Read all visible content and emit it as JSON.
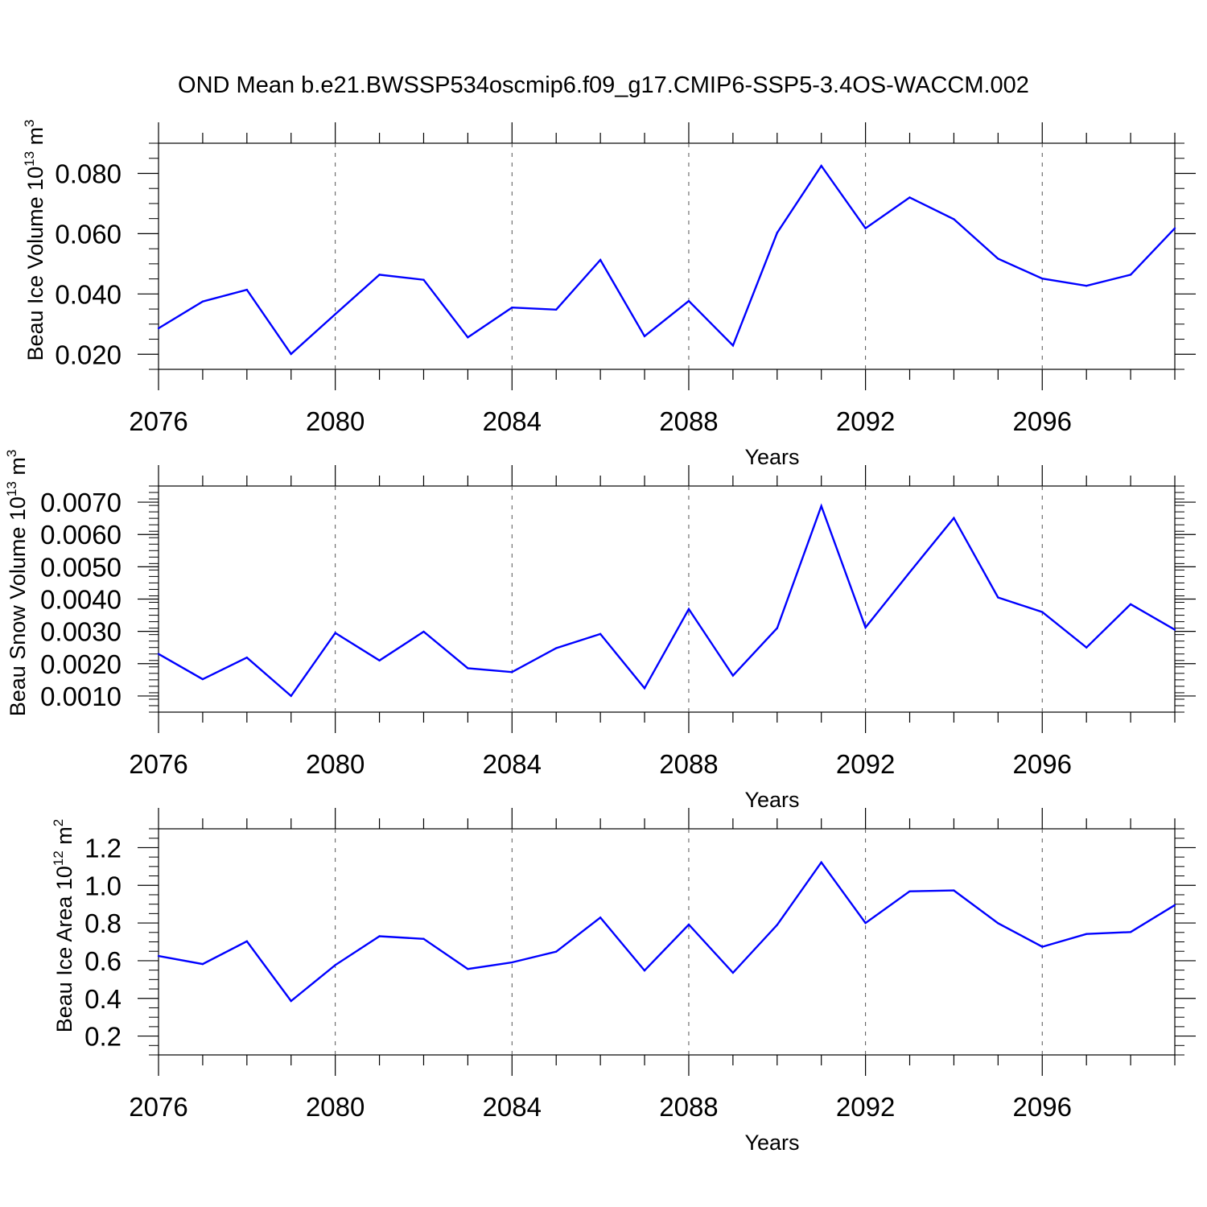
{
  "title": "OND Mean b.e21.BWSSP534oscmip6.f09_g17.CMIP6-SSP5-3.4OS-WACCM.002",
  "colors": {
    "line": "#0000ff",
    "axis": "#000000",
    "grid": "#555555"
  },
  "chart_data": [
    {
      "type": "line",
      "name": "ice-volume",
      "ylabel_main": "Beau Ice Volume 10",
      "ylabel_exp": "13",
      "ylabel_unit": " m",
      "ylabel_unit_exp": "3",
      "xlabel": "Years",
      "xlim": [
        2076,
        2099
      ],
      "ylim": [
        0.015,
        0.09
      ],
      "yticks": [
        0.02,
        0.04,
        0.06,
        0.08
      ],
      "ytick_labels": [
        "0.020",
        "0.040",
        "0.060",
        "0.080"
      ],
      "yminor_step": 0.005,
      "xticks": [
        2076,
        2080,
        2084,
        2088,
        2092,
        2096
      ],
      "xtick_labels": [
        "2076",
        "2080",
        "2084",
        "2088",
        "2092",
        "2096"
      ],
      "x": [
        2076,
        2077,
        2078,
        2079,
        2080,
        2081,
        2082,
        2083,
        2084,
        2085,
        2086,
        2087,
        2088,
        2089,
        2090,
        2091,
        2092,
        2093,
        2094,
        2095,
        2096,
        2097,
        2098,
        2099
      ],
      "values": [
        0.0286,
        0.0375,
        0.0414,
        0.0201,
        0.0333,
        0.0464,
        0.0447,
        0.0256,
        0.0355,
        0.0348,
        0.0513,
        0.026,
        0.0377,
        0.0229,
        0.0603,
        0.0825,
        0.0618,
        0.072,
        0.0648,
        0.0517,
        0.0451,
        0.0427,
        0.0464,
        0.0618
      ]
    },
    {
      "type": "line",
      "name": "snow-volume",
      "ylabel_main": "Beau Snow Volume 10",
      "ylabel_exp": "13",
      "ylabel_unit": " m",
      "ylabel_unit_exp": "3",
      "xlabel": "Years",
      "xlim": [
        2076,
        2099
      ],
      "ylim": [
        0.0005,
        0.0075
      ],
      "yticks": [
        0.001,
        0.002,
        0.003,
        0.004,
        0.005,
        0.006,
        0.007
      ],
      "ytick_labels": [
        "0.0010",
        "0.0020",
        "0.0030",
        "0.0040",
        "0.0050",
        "0.0060",
        "0.0070"
      ],
      "yminor_step": 0.0002,
      "xticks": [
        2076,
        2080,
        2084,
        2088,
        2092,
        2096
      ],
      "xtick_labels": [
        "2076",
        "2080",
        "2084",
        "2088",
        "2092",
        "2096"
      ],
      "x": [
        2076,
        2077,
        2078,
        2079,
        2080,
        2081,
        2082,
        2083,
        2084,
        2085,
        2086,
        2087,
        2088,
        2089,
        2090,
        2091,
        2092,
        2093,
        2094,
        2095,
        2096,
        2097,
        2098,
        2099
      ],
      "values": [
        0.0023,
        0.00152,
        0.00219,
        0.001,
        0.00295,
        0.0021,
        0.00299,
        0.00186,
        0.00174,
        0.00248,
        0.00292,
        0.00124,
        0.00369,
        0.00163,
        0.0031,
        0.00688,
        0.00312,
        0.00483,
        0.00651,
        0.00405,
        0.0036,
        0.0025,
        0.00384,
        0.00305
      ]
    },
    {
      "type": "line",
      "name": "ice-area",
      "ylabel_main": "Beau Ice Area 10",
      "ylabel_exp": "12",
      "ylabel_unit": " m",
      "ylabel_unit_exp": "2",
      "xlabel": "Years",
      "xlim": [
        2076,
        2099
      ],
      "ylim": [
        0.1,
        1.3
      ],
      "yticks": [
        0.2,
        0.4,
        0.6,
        0.8,
        1.0,
        1.2
      ],
      "ytick_labels": [
        "0.2",
        "0.4",
        "0.6",
        "0.8",
        "1.0",
        "1.2"
      ],
      "yminor_step": 0.05,
      "xticks": [
        2076,
        2080,
        2084,
        2088,
        2092,
        2096
      ],
      "xtick_labels": [
        "2076",
        "2080",
        "2084",
        "2088",
        "2092",
        "2096"
      ],
      "x": [
        2076,
        2077,
        2078,
        2079,
        2080,
        2081,
        2082,
        2083,
        2084,
        2085,
        2086,
        2087,
        2088,
        2089,
        2090,
        2091,
        2092,
        2093,
        2094,
        2095,
        2096,
        2097,
        2098,
        2099
      ],
      "values": [
        0.625,
        0.582,
        0.703,
        0.386,
        0.577,
        0.73,
        0.716,
        0.556,
        0.591,
        0.648,
        0.829,
        0.548,
        0.792,
        0.536,
        0.79,
        1.122,
        0.8,
        0.968,
        0.973,
        0.799,
        0.674,
        0.742,
        0.752,
        0.895
      ]
    }
  ]
}
